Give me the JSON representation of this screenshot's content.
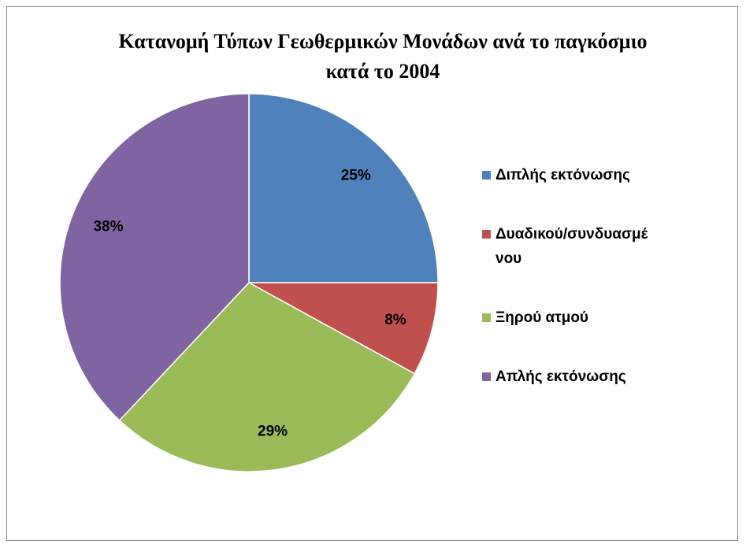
{
  "chart_data": {
    "type": "pie",
    "title": "Κατανομή Τύπων Γεωθερμικών Μονάδων ανά το παγκόσμιο κατά το 2004",
    "categories": [
      "Διπλής εκτόνωσης",
      "Δυαδικού/συνδυασμένου",
      "Ξηρού ατμού",
      "Απλής εκτόνωσης"
    ],
    "values": [
      25,
      8,
      29,
      38
    ],
    "value_labels": [
      "25%",
      "8%",
      "29%",
      "38%"
    ],
    "colors": [
      "#4f81bd",
      "#c0504d",
      "#9bbb59",
      "#8064a2"
    ],
    "legend": "right"
  }
}
